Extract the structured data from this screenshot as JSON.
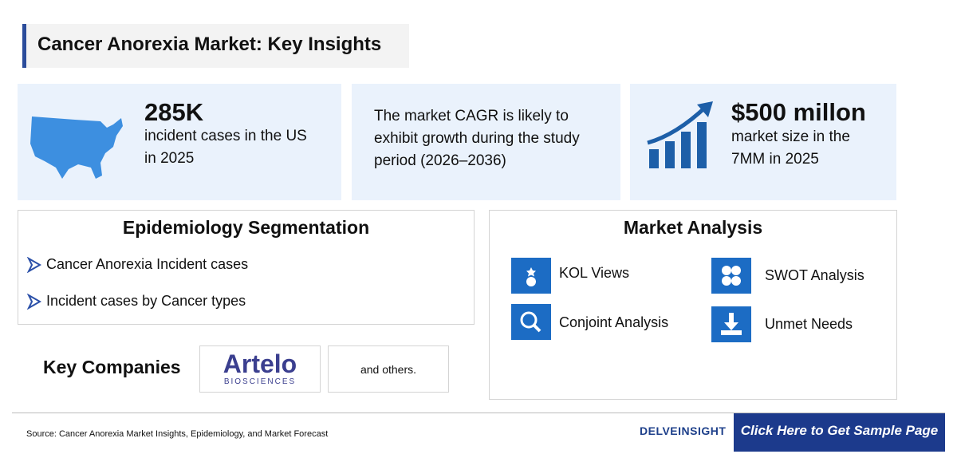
{
  "header": {
    "title": "Cancer Anorexia Market: Key Insights"
  },
  "stats": [
    {
      "value": "285K",
      "lines": [
        "incident cases in the US",
        "in 2025"
      ]
    },
    {
      "lines": [
        "The market CAGR is likely to",
        "exhibit growth during the study",
        "period (2026–2036)"
      ]
    },
    {
      "value": "$500 millon",
      "lines": [
        "market size in the",
        "7MM in 2025"
      ]
    }
  ],
  "epidemiology": {
    "title": "Epidemiology Segmentation",
    "items": [
      "Cancer Anorexia Incident cases",
      "Incident cases by Cancer types"
    ]
  },
  "key_companies": {
    "label": "Key Companies",
    "logo": {
      "name": "Artelo",
      "tagline": "BIOSCIENCES"
    },
    "others": "and others."
  },
  "market_analysis": {
    "title": "Market Analysis",
    "items": [
      "KOL Views",
      "SWOT Analysis",
      "Conjoint Analysis",
      "Unmet Needs"
    ]
  },
  "footer": {
    "source": "Source: Cancer Anorexia Market Insights, Epidemiology, and Market Forecast",
    "brand": "DELVEINSIGHT",
    "button": "Click Here to Get Sample Page"
  }
}
